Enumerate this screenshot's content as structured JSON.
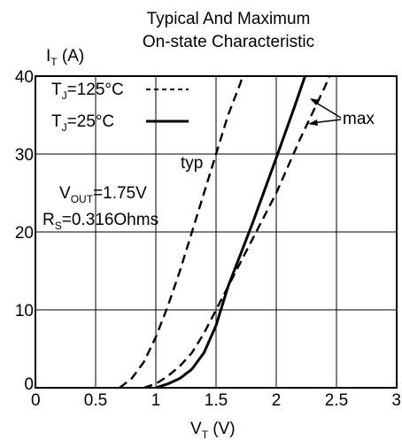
{
  "chart_data": {
    "type": "line",
    "title": [
      "Typical And Maximum",
      "On-state Characteristic"
    ],
    "ylabel": {
      "main": "I",
      "sub": "T",
      "suffix": " (A)"
    },
    "xlabel": {
      "main": "V",
      "sub": "T",
      "suffix": " (V)"
    },
    "xlim": [
      0,
      3
    ],
    "ylim": [
      0,
      40
    ],
    "x_ticks": [
      0,
      0.5,
      1,
      1.5,
      2,
      2.5,
      3
    ],
    "x_tick_labels": [
      "0",
      "0.5",
      "1",
      "1.5",
      "2",
      "2.5",
      "3"
    ],
    "y_ticks": [
      0,
      10,
      20,
      30,
      40
    ],
    "y_tick_labels": [
      "0",
      "10",
      "20",
      "30",
      "40"
    ],
    "grid": true,
    "legend": [
      {
        "main": "T",
        "sub": "J",
        "text": "=125°C",
        "style": "dashed"
      },
      {
        "main": "T",
        "sub": "J",
        "text": "=25°C",
        "style": "solid"
      }
    ],
    "annotations": [
      {
        "id": "vout",
        "main": "V",
        "sub": "OUT",
        "text": "=1.75V"
      },
      {
        "id": "rs",
        "main": "R",
        "sub": "S",
        "text": "=0.316Ohms"
      },
      {
        "id": "typ",
        "text": "typ"
      },
      {
        "id": "max",
        "text": "max"
      }
    ],
    "series": [
      {
        "style": "dashed",
        "points": [
          [
            0.7,
            0
          ],
          [
            0.8,
            1.2
          ],
          [
            0.9,
            3.3
          ],
          [
            1.0,
            6.5
          ],
          [
            1.1,
            10.5
          ],
          [
            1.2,
            15
          ],
          [
            1.3,
            20
          ],
          [
            1.4,
            25
          ],
          [
            1.5,
            30
          ],
          [
            1.6,
            35
          ],
          [
            1.7,
            39
          ],
          [
            1.76,
            42
          ]
        ]
      },
      {
        "style": "solid",
        "points": [
          [
            1.0,
            0
          ],
          [
            1.1,
            0.5
          ],
          [
            1.2,
            1.2
          ],
          [
            1.3,
            2.4
          ],
          [
            1.4,
            4.5
          ],
          [
            1.5,
            8
          ],
          [
            1.6,
            13
          ],
          [
            1.8,
            21
          ],
          [
            2.0,
            29.5
          ],
          [
            2.15,
            36
          ],
          [
            2.25,
            40.5
          ],
          [
            2.28,
            42
          ]
        ]
      },
      {
        "style": "dashed",
        "points": [
          [
            0.9,
            0
          ],
          [
            1.0,
            0.5
          ],
          [
            1.1,
            1.5
          ],
          [
            1.2,
            2.8
          ],
          [
            1.3,
            4.5
          ],
          [
            1.4,
            7
          ],
          [
            1.5,
            10
          ],
          [
            1.6,
            13
          ],
          [
            1.8,
            19
          ],
          [
            2.0,
            25
          ],
          [
            2.2,
            32
          ],
          [
            2.4,
            38.5
          ],
          [
            2.5,
            42
          ]
        ]
      }
    ]
  }
}
